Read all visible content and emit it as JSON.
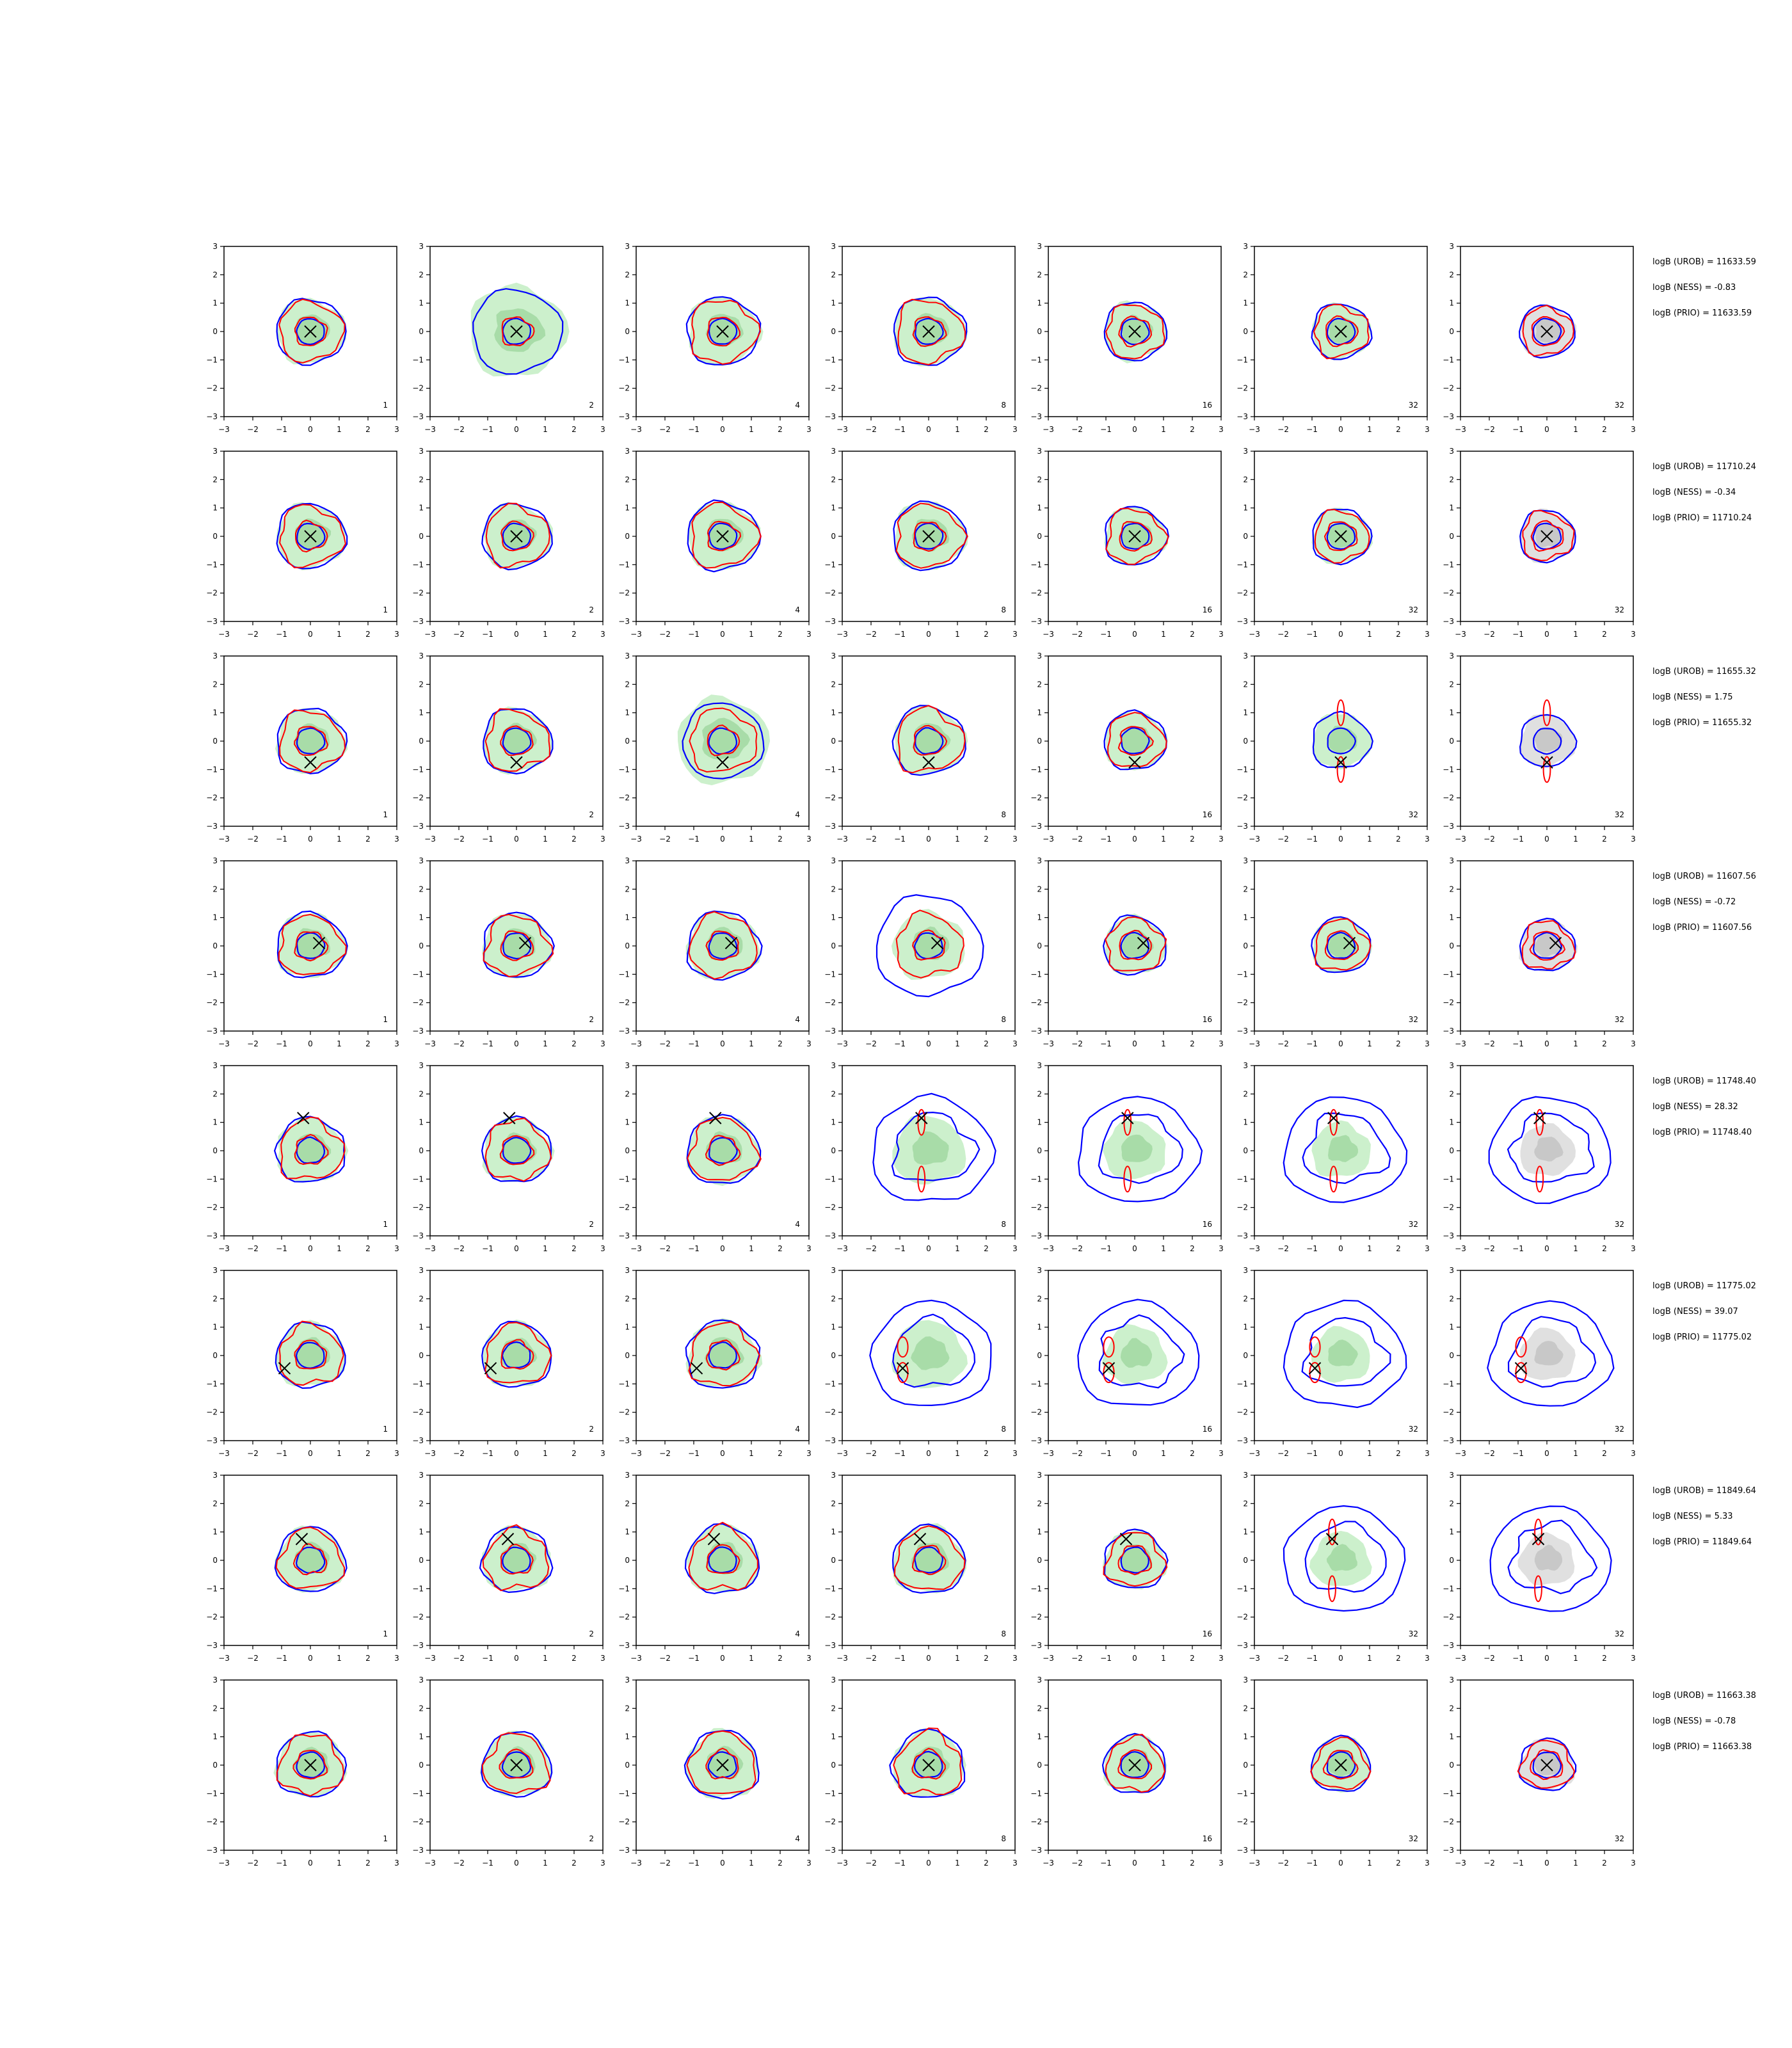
{
  "chart_data": {
    "type": "contour-grid",
    "rows": 8,
    "cols": 7,
    "axes": {
      "xlim": [
        -3,
        3
      ],
      "ylim": [
        -3,
        3
      ],
      "ticks": [
        -3,
        -2,
        -1,
        0,
        1,
        2,
        3
      ],
      "tick_labels": [
        "−3",
        "−2",
        "−1",
        "0",
        "1",
        "2",
        "3"
      ]
    },
    "column_labels": [
      "1",
      "2",
      "4",
      "8",
      "16",
      "32",
      "32"
    ],
    "colors": {
      "samples_fill": "#ccf0cc",
      "samples_fill_dark": "#a8dca8",
      "prior_fill": "#e0e0e0",
      "prior_fill_dark": "#c8c8c8",
      "blue_contour": "#0000ff",
      "red_contour": "#ff0000",
      "marker": "#000000"
    },
    "rows_data": [
      {
        "marker": [
          0.0,
          0.0
        ],
        "annotations": [
          "logB (UROB) = 11633.59",
          "logB (NESS) = -0.83",
          "logB (PRIO) = 11633.59"
        ]
      },
      {
        "marker": [
          0.0,
          0.0
        ],
        "annotations": [
          "logB (UROB) = 11710.24",
          "logB (NESS) = -0.34",
          "logB (PRIO) = 11710.24"
        ]
      },
      {
        "marker": [
          0.0,
          -0.75
        ],
        "annotations": [
          "logB (UROB) = 11655.32",
          "logB (NESS) = 1.75",
          "logB (PRIO) = 11655.32"
        ]
      },
      {
        "marker": [
          0.3,
          0.1
        ],
        "annotations": [
          "logB (UROB) = 11607.56",
          "logB (NESS) = -0.72",
          "logB (PRIO) = 11607.56"
        ]
      },
      {
        "marker": [
          -0.25,
          1.15
        ],
        "annotations": [
          "logB (UROB) = 11748.40",
          "logB (NESS) = 28.32",
          "logB (PRIO) = 11748.40"
        ]
      },
      {
        "marker": [
          -0.9,
          -0.45
        ],
        "annotations": [
          "logB (UROB) = 11775.02",
          "logB (NESS) = 39.07",
          "logB (PRIO) = 11775.02"
        ]
      },
      {
        "marker": [
          -0.3,
          0.75
        ],
        "annotations": [
          "logB (UROB) = 11849.64",
          "logB (NESS) = 5.33",
          "logB (PRIO) = 11849.64"
        ]
      },
      {
        "marker": [
          0.0,
          0.0
        ],
        "annotations": [
          "logB (UROB) = 11663.38",
          "logB (NESS) = -0.78",
          "logB (PRIO) = 11663.38"
        ]
      }
    ]
  }
}
